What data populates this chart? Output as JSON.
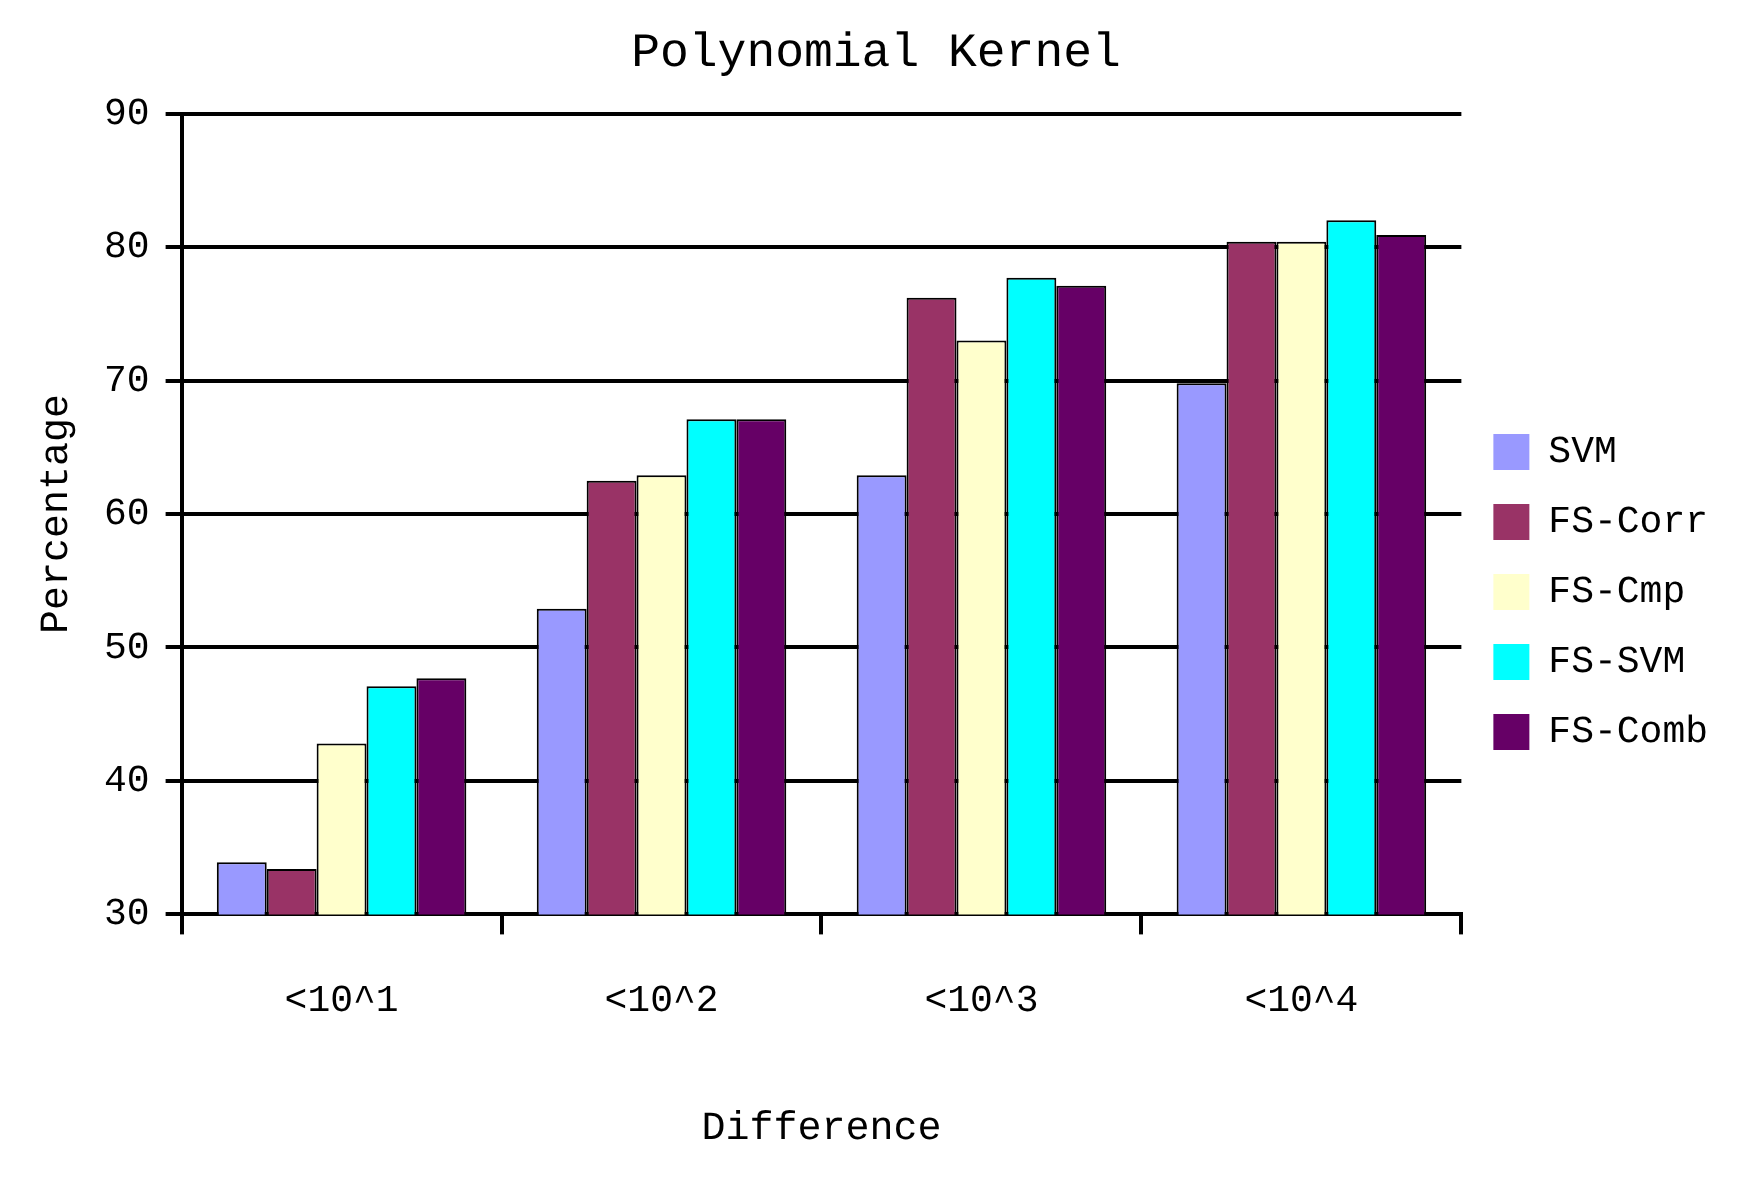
{
  "chart_data": {
    "type": "bar",
    "title": "Polynomial Kernel",
    "xlabel": "Difference",
    "ylabel": "Percentage",
    "categories": [
      "<10^1",
      "<10^2",
      "<10^3",
      "<10^4"
    ],
    "series": [
      {
        "name": "SVM",
        "color": "#9999ff",
        "values": [
          33.9,
          52.9,
          62.9,
          69.8
        ]
      },
      {
        "name": "FS-Corr",
        "color": "#993366",
        "values": [
          33.4,
          62.5,
          76.2,
          80.4
        ]
      },
      {
        "name": "FS-Cmp",
        "color": "#ffffcc",
        "values": [
          42.8,
          62.9,
          73.0,
          80.4
        ]
      },
      {
        "name": "FS-SVM",
        "color": "#00ffff",
        "values": [
          47.1,
          67.1,
          77.7,
          82.0
        ]
      },
      {
        "name": "FS-Comb",
        "color": "#660066",
        "values": [
          47.7,
          67.1,
          77.1,
          80.9
        ]
      }
    ],
    "ylim": [
      30,
      90
    ],
    "yticks": [
      30,
      40,
      50,
      60,
      70,
      80,
      90
    ],
    "grid": "y",
    "legend": "right"
  }
}
